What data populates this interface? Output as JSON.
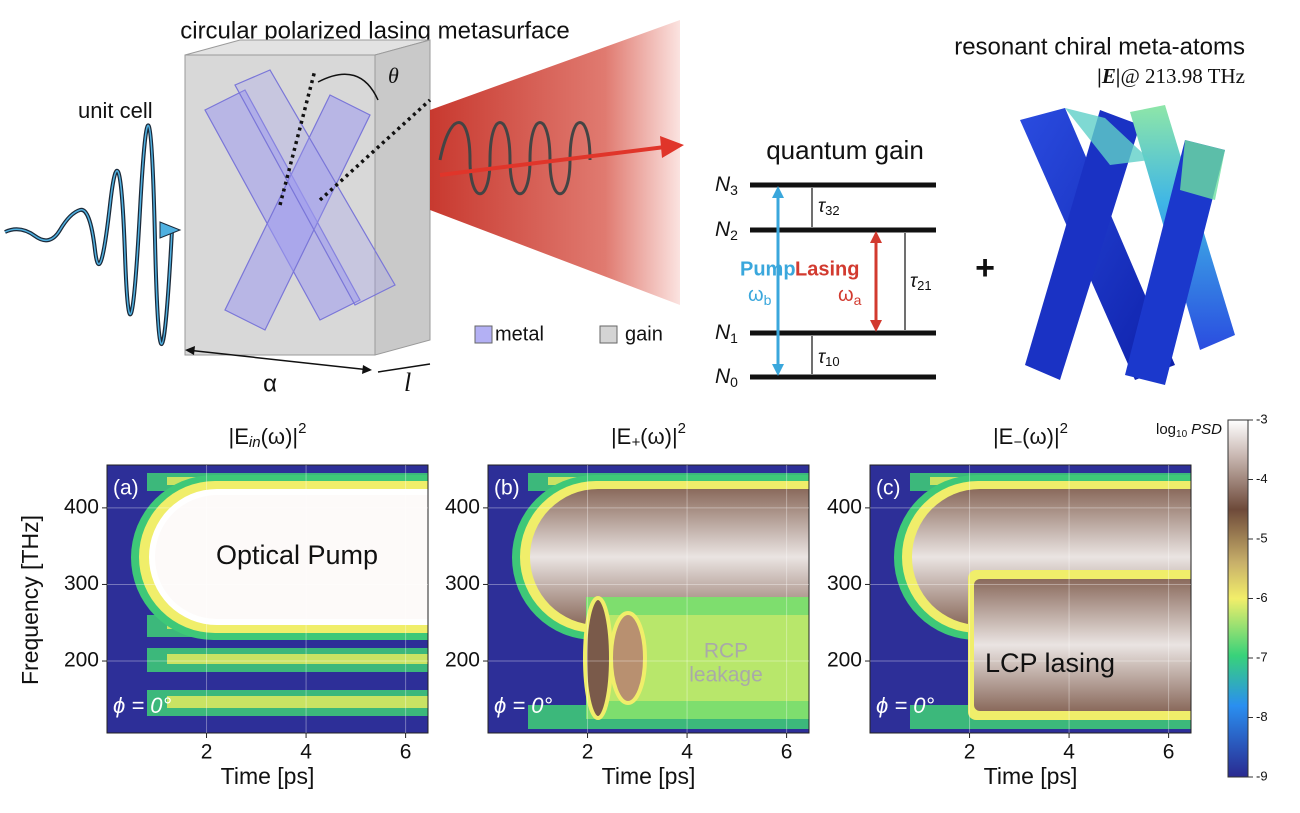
{
  "top": {
    "title": "circular polarized lasing metasurface",
    "unit_cell": "unit cell",
    "theta": "θ",
    "alpha": "α",
    "length": "l",
    "legend": [
      "metal",
      "gain"
    ]
  },
  "quantum_gain": {
    "title": "quantum gain",
    "levels": [
      {
        "symbol": "N",
        "index": "3"
      },
      {
        "symbol": "N",
        "index": "2"
      },
      {
        "symbol": "N",
        "index": "1"
      },
      {
        "symbol": "N",
        "index": "0"
      }
    ],
    "taus": [
      {
        "symbol": "τ",
        "index": "32"
      },
      {
        "symbol": "τ",
        "index": "21"
      },
      {
        "symbol": "τ",
        "index": "10"
      }
    ],
    "pump": {
      "label": "Pump",
      "freq": "ω",
      "index": "b"
    },
    "lasing": {
      "label": "Lasing",
      "freq": "ω",
      "index": "a"
    }
  },
  "plus": "+",
  "meta_atoms": {
    "title": "resonant chiral meta-atoms",
    "field": "|E|",
    "at": "@ 213.98 THz"
  },
  "plots": {
    "ylabel": "Frequency [THz]",
    "xlabel": "Time [ps]",
    "xlim": [
      0,
      6.45
    ],
    "ylim": [
      106,
      456
    ],
    "xticks": [
      2,
      4,
      6
    ],
    "yticks": [
      200,
      300,
      400
    ],
    "phase": "ϕ = 0°",
    "panels": [
      {
        "title": {
          "pre": "|E",
          "sub": "in",
          "post": "(ω)|",
          "sup": "2"
        },
        "tag": "(a)",
        "annotation": [
          "Optical Pump"
        ]
      },
      {
        "title": {
          "pre": "|E",
          "sub": "+",
          "post": "(ω)|",
          "sup": "2"
        },
        "tag": "(b)",
        "annotation": [
          "RCP",
          "leakage"
        ]
      },
      {
        "title": {
          "pre": "|E",
          "sub": "−",
          "post": "(ω)|",
          "sup": "2"
        },
        "tag": "(c)",
        "annotation": [
          "LCP lasing"
        ]
      }
    ]
  },
  "colorbar": {
    "label": {
      "pre": "log",
      "sub": "10",
      "post": "PSD"
    },
    "lim": [
      -9,
      -3
    ],
    "ticks": [
      -3,
      -4,
      -5,
      -6,
      -7,
      -8,
      -9
    ]
  }
}
